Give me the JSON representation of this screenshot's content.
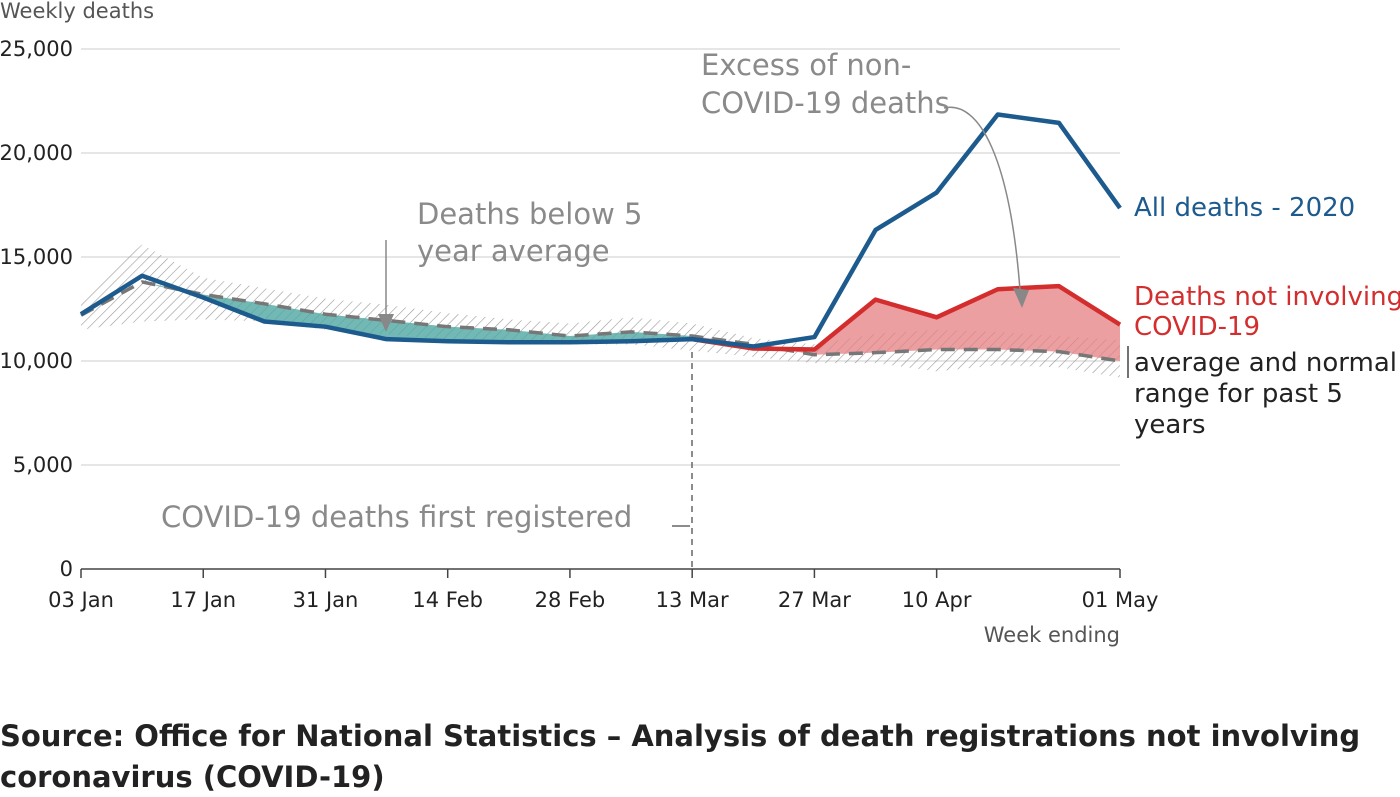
{
  "chart_data": {
    "type": "line",
    "y_label": "Weekly deaths",
    "x_label": "Week ending",
    "categories": [
      "03 Jan",
      null,
      "17 Jan",
      null,
      "31 Jan",
      null,
      "14 Feb",
      null,
      "28 Feb",
      null,
      "13 Mar",
      null,
      "27 Mar",
      null,
      "10 Apr",
      null,
      null,
      "01 May"
    ],
    "ylim": [
      0,
      25000
    ],
    "yticks": [
      0,
      {
        "value": 5000,
        "label": "5,000"
      },
      {
        "value": 10000,
        "label": "10,000"
      },
      {
        "value": 15000,
        "label": "15,000"
      },
      {
        "value": 20000,
        "label": "20,000"
      },
      {
        "value": 25000,
        "label": "25,000"
      }
    ],
    "grid": true,
    "series": [
      {
        "name": "All deaths - 2020",
        "color": "#1d5b8e",
        "values": [
          12250,
          14100,
          13050,
          11900,
          11650,
          11050,
          10950,
          10900,
          10900,
          10950,
          11050,
          10700,
          11150,
          16300,
          18100,
          21850,
          21450,
          17350
        ]
      },
      {
        "name": "Deaths not involving COVID-19",
        "color": "#d42d2d",
        "values": [
          null,
          null,
          null,
          null,
          null,
          null,
          null,
          null,
          null,
          null,
          11050,
          10600,
          10550,
          12950,
          12100,
          13450,
          13600,
          11750
        ]
      },
      {
        "name": "average and normal range for past 5 years",
        "color": "#777777",
        "values": [
          12200,
          13800,
          13200,
          12750,
          12250,
          11950,
          11650,
          11500,
          11200,
          11400,
          11200,
          10800,
          10300,
          10400,
          10550,
          10550,
          10450,
          10000
        ],
        "range_upper": [
          13100,
          15600,
          14000,
          13500,
          13000,
          12700,
          12300,
          12000,
          11800,
          12100,
          11800,
          11100,
          10800,
          11300,
          11500,
          11400,
          11200,
          11000
        ],
        "range_lower": [
          11500,
          11900,
          12000,
          11900,
          11500,
          11300,
          11000,
          10900,
          10800,
          10800,
          10500,
          10200,
          9900,
          9900,
          9500,
          9800,
          9700,
          9200
        ]
      }
    ],
    "annotations": [
      "Excess of non-COVID-19 deaths",
      "Deaths below 5 year average",
      "COVID-19 deaths first registered"
    ],
    "source": "Source: Office for National Statistics – Analysis of death registrations not involving coronavirus (COVID-19)"
  }
}
